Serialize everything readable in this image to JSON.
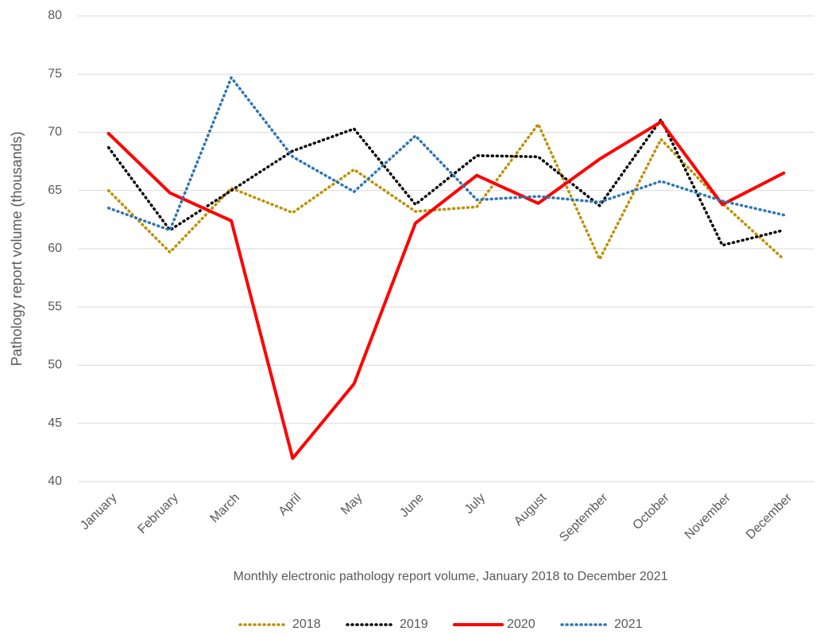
{
  "chart_data": {
    "type": "line",
    "xlabel": "Monthly electronic pathology report volume, January 2018 to December 2021",
    "ylabel": "Pathology report volume (thousands)",
    "categories": [
      "January",
      "February",
      "March",
      "April",
      "May",
      "June",
      "July",
      "August",
      "September",
      "October",
      "November",
      "December"
    ],
    "series": [
      {
        "name": "2018",
        "color": "#bf9000",
        "dash": "dotted",
        "values": [
          65,
          59.7,
          65.2,
          63.1,
          66.8,
          63.2,
          63.6,
          70.7,
          59.1,
          69.4,
          63.9,
          59.1
        ]
      },
      {
        "name": "2019",
        "color": "#000000",
        "dash": "dotted",
        "values": [
          68.7,
          61.6,
          65,
          68.4,
          70.3,
          63.8,
          68,
          67.9,
          63.7,
          71.1,
          60.3,
          61.6
        ]
      },
      {
        "name": "2020",
        "color": "#ff0000",
        "dash": "solid",
        "values": [
          69.9,
          64.8,
          62.4,
          42,
          48.4,
          62.2,
          66.3,
          63.9,
          67.7,
          70.9,
          63.8,
          66.5
        ]
      },
      {
        "name": "2021",
        "color": "#2e75b6",
        "dash": "dotted",
        "values": [
          63.5,
          61.6,
          74.7,
          67.9,
          64.9,
          69.7,
          64.2,
          64.5,
          64,
          65.8,
          64.1,
          62.9
        ]
      }
    ],
    "ylim": [
      40,
      80
    ],
    "yticks": [
      40,
      45,
      50,
      55,
      60,
      65,
      70,
      75,
      80
    ],
    "grid": true,
    "legend": "bottom"
  }
}
